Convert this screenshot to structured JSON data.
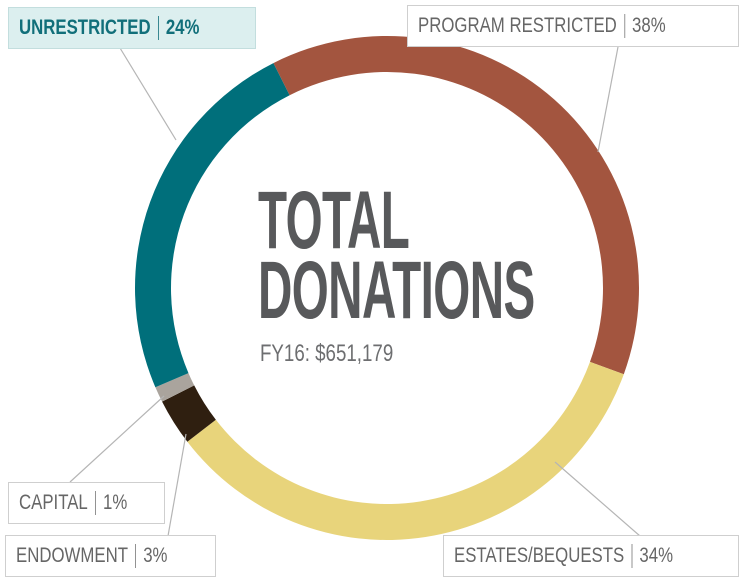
{
  "chart_data": {
    "type": "donut",
    "title": "TOTAL DONATIONS",
    "subtitle": "FY16: $651,179",
    "categories": [
      "PROGRAM RESTRICTED",
      "ESTATES/BEQUESTS",
      "ENDOWMENT",
      "CAPITAL",
      "UNRESTRICTED"
    ],
    "values": [
      38,
      34,
      3,
      1,
      24
    ],
    "value_labels": [
      "38%",
      "34%",
      "3%",
      "1%",
      "24%"
    ],
    "colors": [
      "#a3553f",
      "#e8d47b",
      "#2f1f10",
      "#aaa49d",
      "#006f7b"
    ]
  }
}
